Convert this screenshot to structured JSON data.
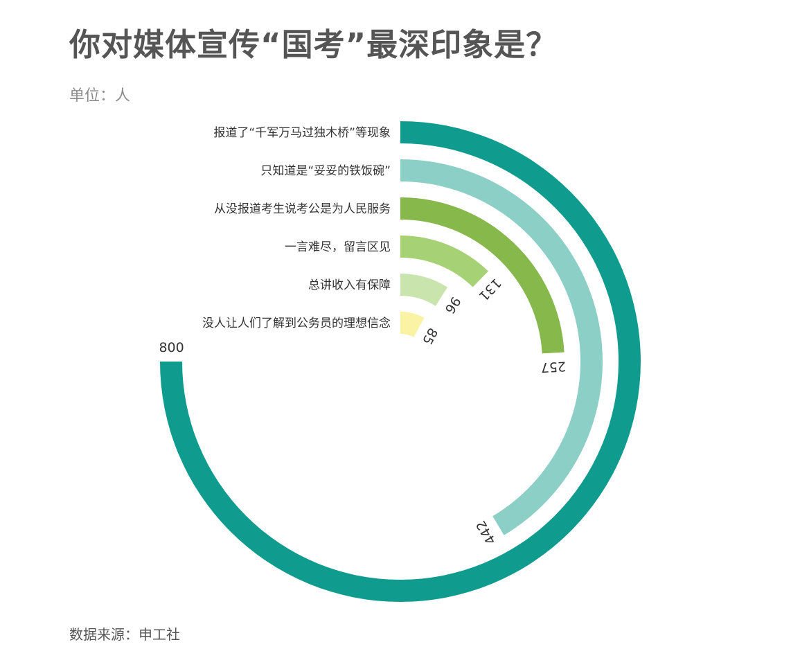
{
  "title": "你对媒体宣传“国考”最深印象是？",
  "unit": "单位：人",
  "source": "数据来源：申工社",
  "chart_data": {
    "type": "radial-bar",
    "max": 800,
    "categories": [
      "报道了“千军万马过独木桥”等现象",
      "只知道是“妥妥的铁饭碗”",
      "从没报道考生说考公是为人民服务",
      "一言难尽，留言区见",
      "总讲收入有保障",
      "没人让人们了解到公务员的理想信念"
    ],
    "values": [
      800,
      442,
      257,
      131,
      96,
      85
    ],
    "colors": [
      "#0f9b8e",
      "#8ccfc7",
      "#86b84c",
      "#a6d275",
      "#c9e5ad",
      "#faf3a3"
    ]
  }
}
